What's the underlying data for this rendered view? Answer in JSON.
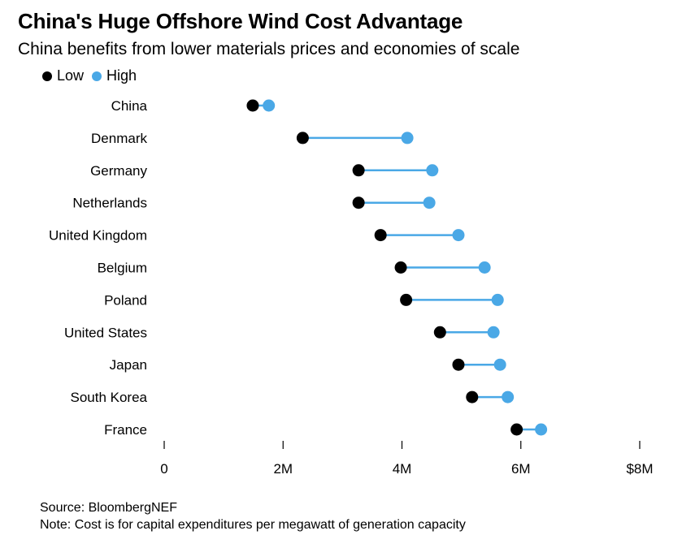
{
  "title": "China's Huge Offshore Wind Cost Advantage",
  "subtitle": "China benefits from lower materials prices and economies of scale",
  "legend": [
    {
      "label": "Low",
      "color": "#000000"
    },
    {
      "label": "High",
      "color": "#4aa8e6"
    }
  ],
  "footer": {
    "source": "Source: BloombergNEF",
    "note": "Note: Cost is for capital expenditures per megawatt of generation capacity"
  },
  "chart_data": {
    "type": "dumbbell",
    "title": "China's Huge Offshore Wind Cost Advantage",
    "subtitle": "China benefits from lower materials prices and economies of scale",
    "xlabel": "",
    "ylabel": "",
    "unit": "USD per megawatt",
    "xlim": [
      0,
      8000000
    ],
    "xticks": [
      0,
      2000000,
      4000000,
      6000000,
      8000000
    ],
    "xtick_labels": [
      "0",
      "2M",
      "4M",
      "6M",
      "$8M"
    ],
    "grid": false,
    "legend_position": "top-left",
    "categories": [
      "China",
      "Denmark",
      "Germany",
      "Netherlands",
      "United Kingdom",
      "Belgium",
      "Poland",
      "United States",
      "Japan",
      "South Korea",
      "France"
    ],
    "series": [
      {
        "name": "Low",
        "color": "#000000",
        "values": [
          1490000,
          2330000,
          3270000,
          3270000,
          3640000,
          3980000,
          4070000,
          4640000,
          4950000,
          5180000,
          5930000
        ]
      },
      {
        "name": "High",
        "color": "#4aa8e6",
        "values": [
          1760000,
          4090000,
          4510000,
          4460000,
          4950000,
          5390000,
          5610000,
          5540000,
          5650000,
          5780000,
          6340000
        ]
      }
    ]
  }
}
